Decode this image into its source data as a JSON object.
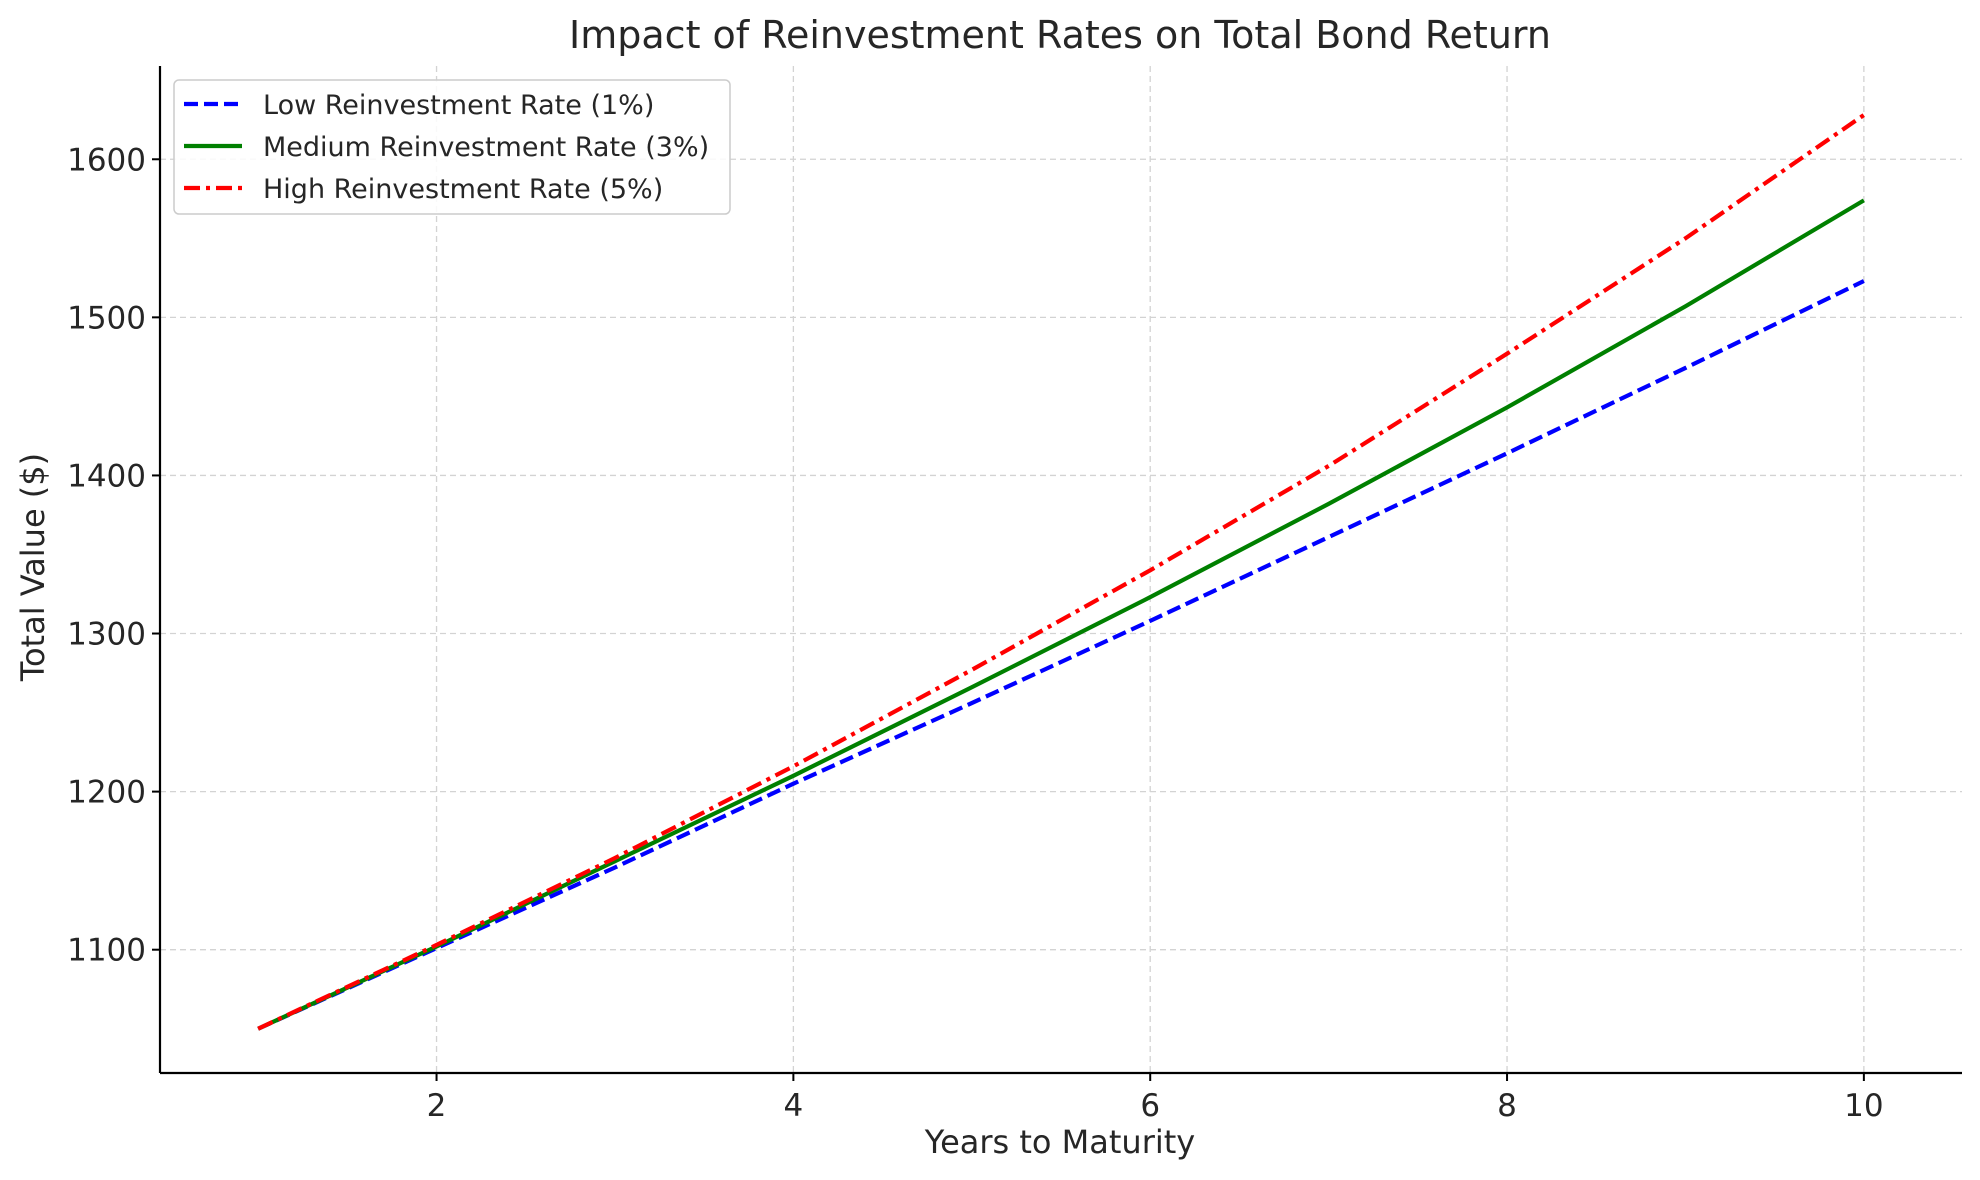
{
  "chart_data": {
    "type": "line",
    "title": "Impact of Reinvestment Rates on Total Bond Return",
    "xlabel": "Years to Maturity",
    "ylabel": "Total Value ($)",
    "x": [
      1,
      2,
      3,
      4,
      5,
      6,
      7,
      8,
      9,
      10
    ],
    "xlim": [
      0.45,
      10.55
    ],
    "ylim": [
      1022,
      1659
    ],
    "xticks": [
      2,
      4,
      6,
      8,
      10
    ],
    "yticks": [
      1100,
      1200,
      1300,
      1400,
      1500,
      1600
    ],
    "grid": true,
    "legend_position": "top-left",
    "series": [
      {
        "name": "Low Reinvestment Rate (1%)",
        "color": "#0000ff",
        "style": "dashed",
        "values": [
          1050,
          1101,
          1152,
          1205,
          1256,
          1308,
          1361,
          1414,
          1468,
          1523
        ]
      },
      {
        "name": "Medium Reinvestment Rate (3%)",
        "color": "#008000",
        "style": "solid",
        "values": [
          1050,
          1102,
          1156,
          1210,
          1266,
          1323,
          1382,
          1443,
          1507,
          1574
        ]
      },
      {
        "name": "High Reinvestment Rate (5%)",
        "color": "#ff0000",
        "style": "dashdot",
        "values": [
          1050,
          1103,
          1158,
          1216,
          1277,
          1340,
          1406,
          1477,
          1550,
          1628
        ]
      }
    ]
  }
}
